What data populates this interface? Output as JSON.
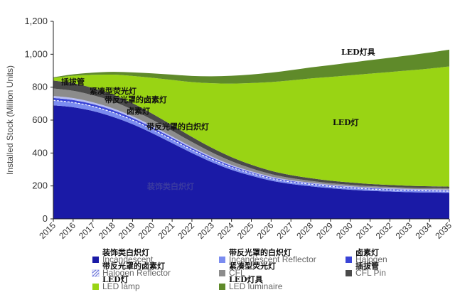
{
  "chart_data": {
    "type": "area",
    "stacked": true,
    "title": "",
    "xlabel": "",
    "ylabel": "Installed Stock (Million Units)",
    "ylim": [
      0,
      1200
    ],
    "yticks": [
      "0",
      "200",
      "400",
      "600",
      "800",
      "1,000",
      "1,200"
    ],
    "grid": false,
    "legend_position": "bottom",
    "x": [
      "2015",
      "2016",
      "2017",
      "2018",
      "2019",
      "2020",
      "2021",
      "2022",
      "2023",
      "2024",
      "2025",
      "2026",
      "2027",
      "2028",
      "2029",
      "2030",
      "2031",
      "2032",
      "2033",
      "2034",
      "2035"
    ],
    "series": [
      {
        "key": "incandescent",
        "name": "Incandescent",
        "name_zh": "装饰类白炽灯",
        "color": "#1a1aa6",
        "values": [
          690,
          678,
          655,
          620,
          575,
          520,
          460,
          400,
          345,
          298,
          262,
          232,
          212,
          198,
          186,
          177,
          170,
          166,
          162,
          160,
          158
        ]
      },
      {
        "key": "incandescent_reflector",
        "name": "Incandescent Reflector",
        "name_zh": "带反光罩的白炽灯",
        "color": "#7b8cf0",
        "values": [
          30,
          29,
          28,
          27,
          25,
          23,
          21,
          19,
          17,
          15,
          14,
          13,
          12,
          12,
          11,
          11,
          11,
          10,
          10,
          10,
          10
        ]
      },
      {
        "key": "halogen",
        "name": "Halogen",
        "name_zh": "卤素灯",
        "color": "#3a44d6",
        "values": [
          15,
          15,
          14,
          14,
          13,
          12,
          11,
          10,
          9,
          8,
          7,
          6,
          6,
          5,
          5,
          5,
          5,
          5,
          5,
          5,
          5
        ]
      },
      {
        "key": "halogen_reflector",
        "name": "Halogen Reflector",
        "name_zh": "带反光罩的卤素灯",
        "color": "#b7bdf5",
        "values": [
          12,
          12,
          11,
          11,
          10,
          10,
          9,
          8,
          7,
          7,
          6,
          6,
          5,
          5,
          5,
          5,
          5,
          5,
          5,
          5,
          5
        ]
      },
      {
        "key": "cfl",
        "name": "CFL",
        "name_zh": "紧凑型荧光灯",
        "color": "#8c8c8c",
        "values": [
          45,
          44,
          43,
          42,
          40,
          37,
          34,
          30,
          26,
          22,
          18,
          15,
          13,
          11,
          10,
          9,
          8,
          8,
          7,
          7,
          7
        ]
      },
      {
        "key": "cfl_pin",
        "name": "CFL Pin",
        "name_zh": "插拔管",
        "color": "#4a4a4a",
        "values": [
          48,
          46,
          44,
          42,
          40,
          37,
          34,
          31,
          28,
          25,
          22,
          20,
          18,
          16,
          15,
          14,
          13,
          12,
          12,
          11,
          11
        ]
      },
      {
        "key": "led_lamp",
        "name": "LED lamp",
        "name_zh": "LED灯",
        "color": "#99d414",
        "values": [
          15,
          45,
          80,
          120,
          165,
          218,
          275,
          333,
          392,
          447,
          496,
          539,
          575,
          606,
          630,
          651,
          670,
          686,
          701,
          715,
          730
        ]
      },
      {
        "key": "led_luminaire",
        "name": "LED luminaire",
        "name_zh": "LED灯具",
        "color": "#5f8a2a",
        "values": [
          5,
          9,
          13,
          17,
          22,
          27,
          32,
          37,
          42,
          47,
          52,
          57,
          62,
          67,
          72,
          77,
          82,
          87,
          92,
          97,
          102
        ]
      }
    ]
  }
}
